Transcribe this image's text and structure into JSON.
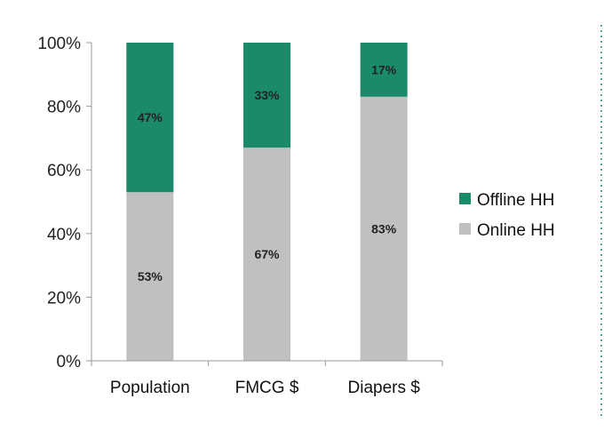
{
  "chart_data": {
    "type": "bar",
    "stacked": true,
    "categories": [
      "Population",
      "FMCG $",
      "Diapers $"
    ],
    "series": [
      {
        "name": "Online HH",
        "values": [
          53,
          67,
          83
        ],
        "labels": [
          "53%",
          "67%",
          "83%"
        ],
        "color": "#c0c0c0"
      },
      {
        "name": "Offline HH",
        "values": [
          47,
          33,
          17
        ],
        "labels": [
          "47%",
          "33%",
          "17%"
        ],
        "color": "#1b8a6b"
      }
    ],
    "yticks": [
      "0%",
      "20%",
      "40%",
      "60%",
      "80%",
      "100%"
    ],
    "ylim": [
      0,
      100
    ],
    "legend": [
      {
        "name": "Offline HH",
        "color": "#1b8a6b"
      },
      {
        "name": "Online HH",
        "color": "#c0c0c0"
      }
    ],
    "legend_position": "right",
    "title": "",
    "xlabel": "",
    "ylabel": ""
  }
}
